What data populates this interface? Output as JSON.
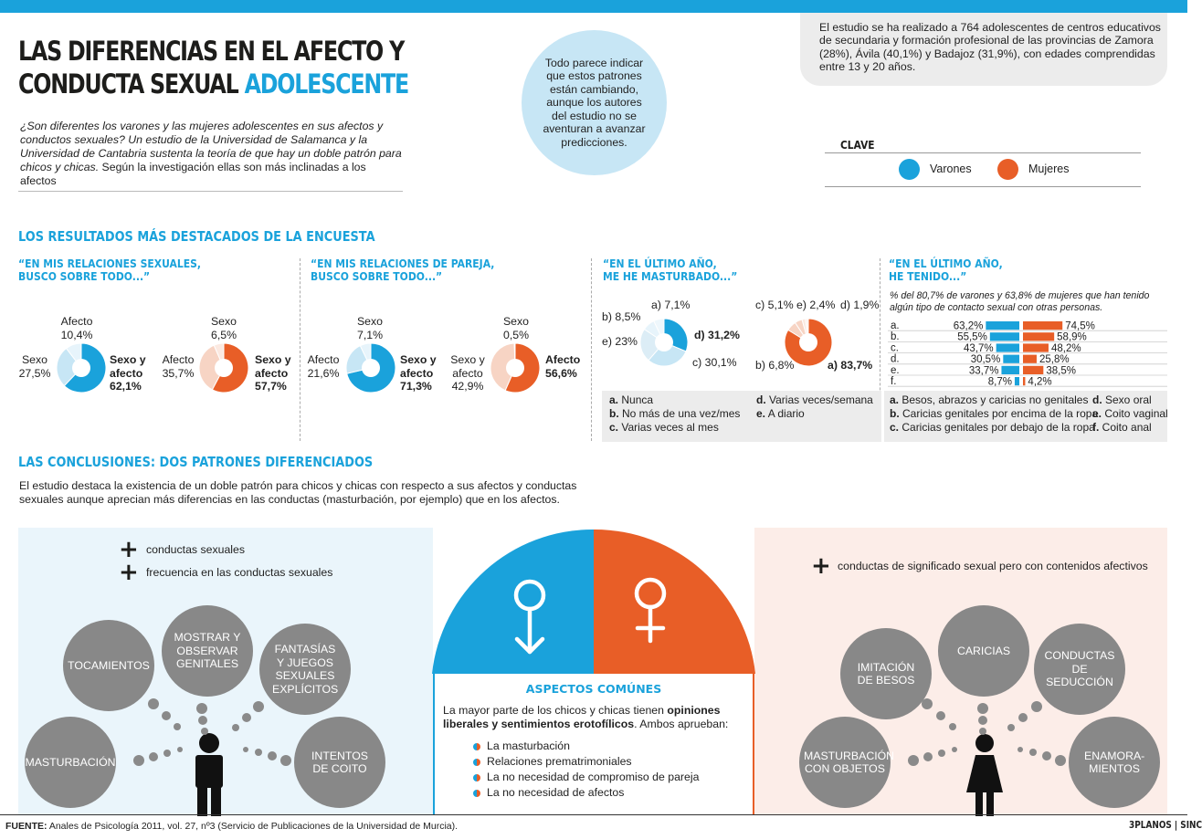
{
  "header": {
    "title_line1": "LAS DIFERENCIAS EN EL AFECTO Y",
    "title_line2": "CONDUCTA SEXUAL",
    "title_highlight": "ADOLESCENTE",
    "intro_italic": "¿Son diferentes los varones y las mujeres adolescentes en sus afectos y conductos sexuales? Un estudio de la Universidad de Salamanca y la Universidad de Cantabria sustenta la teoría de que hay un doble patrón para chicos y chicas.",
    "intro_plain": " Según la investigación ellas son más inclinadas a los afectos",
    "bubble": "Todo parece indicar que estos patrones están cambiando, aunque los autores del estudio no se aventuran a avanzar predicciones.",
    "study": "El estudio se ha realizado a 764 adolescentes de centros educativos de secundaria y formación profesional de las provincias de Zamora (28%), Ávila (40,1%) y Badajoz (31,9%), con edades comprendidas entre 13 y 20 años."
  },
  "key": {
    "title": "CLAVE",
    "male": "Varones",
    "female": "Mujeres",
    "male_color": "#1aa2db",
    "female_color": "#e85e27"
  },
  "results_title": "LOS RESULTADOS MÁS DESTACADOS DE LA ENCUESTA",
  "q1": {
    "line1": "“EN MIS RELACIONES SEXUALES,",
    "line2": "BUSCO SOBRE TODO...”"
  },
  "q2": {
    "line1": "“EN MIS RELACIONES DE PAREJA,",
    "line2": "BUSCO SOBRE TODO...”"
  },
  "q3": {
    "line1": "“EN EL ÚLTIMO AÑO,",
    "line2": "ME HE MASTURBADO...”"
  },
  "q4": {
    "line1": "“EN EL ÚLTIMO AÑO,",
    "line2": "HE TENIDO...”",
    "note": "% del 80,7% de varones y 63,8% de mujeres que han tenido algún tipo de contacto sexual con otras personas."
  },
  "chart_data": [
    {
      "type": "pie",
      "title": "“EN MIS RELACIONES SEXUALES, BUSCO SOBRE TODO...” — Varones",
      "labels": [
        "Sexo y afecto",
        "Sexo",
        "Afecto"
      ],
      "values": [
        62.1,
        27.5,
        10.4
      ],
      "display": [
        "62,1%",
        "27,5%",
        "10,4%"
      ],
      "hole": true
    },
    {
      "type": "pie",
      "title": "“EN MIS RELACIONES SEXUALES, BUSCO SOBRE TODO...” — Mujeres",
      "labels": [
        "Sexo y afecto",
        "Afecto",
        "Sexo"
      ],
      "values": [
        57.7,
        35.7,
        6.5
      ],
      "display": [
        "57,7%",
        "35,7%",
        "6,5%"
      ],
      "hole": true
    },
    {
      "type": "pie",
      "title": "“EN MIS RELACIONES DE PAREJA, BUSCO SOBRE TODO...” — Varones",
      "labels": [
        "Sexo y afecto",
        "Afecto",
        "Sexo"
      ],
      "values": [
        71.3,
        21.6,
        7.1
      ],
      "display": [
        "71,3%",
        "21,6%",
        "7,1%"
      ],
      "hole": true
    },
    {
      "type": "pie",
      "title": "“EN MIS RELACIONES DE PAREJA, BUSCO SOBRE TODO...” — Mujeres",
      "labels": [
        "Afecto",
        "Sexo y afecto",
        "Sexo"
      ],
      "values": [
        56.6,
        42.9,
        0.5
      ],
      "display": [
        "56,6%",
        "42,9%",
        "0,5%"
      ],
      "hole": true
    },
    {
      "type": "pie",
      "title": "“EN EL ÚLTIMO AÑO, ME HE MASTURBADO...” — Varones",
      "labels": [
        "d)",
        "c)",
        "e)",
        "b)",
        "a)"
      ],
      "values": [
        31.2,
        30.1,
        23,
        8.5,
        7.1
      ],
      "display": [
        "31,2%",
        "30,1%",
        "23%",
        "8,5%",
        "7,1%"
      ],
      "hole": true
    },
    {
      "type": "pie",
      "title": "“EN EL ÚLTIMO AÑO, ME HE MASTURBADO...” — Mujeres",
      "labels": [
        "a)",
        "b)",
        "c)",
        "e)",
        "d)"
      ],
      "values": [
        83.7,
        6.8,
        5.1,
        2.4,
        1.9
      ],
      "display": [
        "83,7%",
        "6,8%",
        "5,1%",
        "2,4%",
        "1,9%"
      ],
      "hole": true
    },
    {
      "type": "bar",
      "orientation": "horizontal",
      "title": "“EN EL ÚLTIMO AÑO, HE TENIDO...”",
      "categories": [
        "a.",
        "b.",
        "c.",
        "d.",
        "e.",
        "f."
      ],
      "series": [
        {
          "name": "Varones",
          "values": [
            63.2,
            55.5,
            43.7,
            30.5,
            33.7,
            8.7
          ],
          "display": [
            "63,2%",
            "55,5%",
            "43,7%",
            "30,5%",
            "33,7%",
            "8,7%"
          ]
        },
        {
          "name": "Mujeres",
          "values": [
            74.5,
            58.9,
            48.2,
            25.8,
            38.5,
            4.2
          ],
          "display": [
            "74,5%",
            "58,9%",
            "48,2%",
            "25,8%",
            "38,5%",
            "4,2%"
          ]
        }
      ],
      "xlim": [
        0,
        100
      ]
    }
  ],
  "pie_labels": {
    "p1": {
      "afecto": "Afecto",
      "afecto_v": "10,4%",
      "sexo": "Sexo",
      "sexo_v": "27,5%",
      "sya1": "Sexo y",
      "sya2": "afecto",
      "sya_v": "62,1%"
    },
    "p2": {
      "sexo": "Sexo",
      "sexo_v": "6,5%",
      "afecto": "Afecto",
      "afecto_v": "35,7%",
      "sya1": "Sexo y",
      "sya2": "afecto",
      "sya_v": "57,7%"
    },
    "p3": {
      "sexo": "Sexo",
      "sexo_v": "7,1%",
      "afecto": "Afecto",
      "afecto_v": "21,6%",
      "sya1": "Sexo y",
      "sya2": "afecto",
      "sya_v": "71,3%"
    },
    "p4": {
      "sexo": "Sexo",
      "sexo_v": "0,5%",
      "sya1": "Sexo y",
      "sya2": "afecto",
      "sya_v": "42,9%",
      "afecto": "Afecto",
      "afecto_v": "56,6%"
    },
    "p5": {
      "a": "a) 7,1%",
      "b": "b) 8,5%",
      "e": "e) 23%",
      "d": "d) 31,2%",
      "c": "c) 30,1%"
    },
    "p6": {
      "c": "c) 5,1%",
      "e": "e) 2,4%",
      "d": "d) 1,9%",
      "b": "b) 6,8%",
      "a": "a) 83,7%"
    }
  },
  "masturb_legend": [
    {
      "k": "a.",
      "t": " Nunca"
    },
    {
      "k": "b.",
      "t": " No más de una vez/mes"
    },
    {
      "k": "c.",
      "t": " Varias veces al mes"
    },
    {
      "k": "d.",
      "t": " Varias veces/semana"
    },
    {
      "k": "e.",
      "t": " A diario"
    }
  ],
  "contact_legend": [
    {
      "k": "a.",
      "t": " Besos, abrazos y caricias no genitales"
    },
    {
      "k": "b.",
      "t": " Caricias genitales por encima de la ropa"
    },
    {
      "k": "c.",
      "t": " Caricias genitales por debajo de la ropa"
    },
    {
      "k": "d.",
      "t": " Sexo oral"
    },
    {
      "k": "e.",
      "t": " Coito vaginal"
    },
    {
      "k": "f.",
      "t": " Coito anal"
    }
  ],
  "conclusions": {
    "title": "LAS CONCLUSIONES: DOS PATRONES DIFERENCIADOS",
    "text": "El estudio destaca la existencia de un doble patrón para chicos y chicas con respecto a sus afectos y conductas sexuales aunque aprecian más diferencias en las conductas (masturbación, por ejemplo) que en los afectos."
  },
  "male_panel": {
    "plus1": "conductas sexuales",
    "plus2": "frecuencia en las conductas sexuales",
    "c1": "TOCAMIENTOS",
    "c2": "MOSTRAR Y OBSERVAR GENITALES",
    "c3": "FANTASÍAS Y JUEGOS SEXUALES EXPLÍCITOS",
    "c4": "MASTURBACIÓN",
    "c5": "INTENTOS DE COITO"
  },
  "female_panel": {
    "plus1": "conductas de significado sexual pero con contenidos afectivos",
    "c1": "IMITACIÓN DE BESOS",
    "c2": "CARICIAS",
    "c3": "CONDUCTAS DE SEDUCCIÓN",
    "c4": "MASTURBACIÓN CON OBJETOS",
    "c5": "ENAMORA- MIENTOS"
  },
  "common": {
    "title": "ASPECTOS COMÚNES",
    "text1": "La mayor parte de los chicos y chicas tienen ",
    "text_bold": "opiniones liberales y sentimientos erotofílicos",
    "text2": ". Ambos aprueban:",
    "items": [
      "La masturbación",
      "Relaciones prematrimoniales",
      "La no necesidad de compromiso de pareja",
      "La no necesidad de afectos"
    ]
  },
  "footer": {
    "source_label": "FUENTE:",
    "source": " Anales de Psicología 2011, vol. 27, nº3 (Servicio de Publicaciones de la Universidad de Murcia).",
    "brand": "3PLANOS | SINC"
  }
}
